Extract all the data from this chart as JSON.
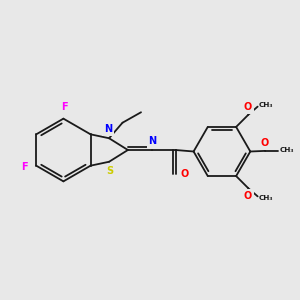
{
  "bg_color": "#e8e8e8",
  "bond_color": "#1a1a1a",
  "S_color": "#cccc00",
  "N_color": "#0000ff",
  "O_color": "#ff0000",
  "F_color": "#ff00ff",
  "lw": 1.3,
  "fs": 7.0,
  "fsg": 5.2,
  "xlim": [
    0,
    10
  ],
  "ylim": [
    0.5,
    10.5
  ]
}
